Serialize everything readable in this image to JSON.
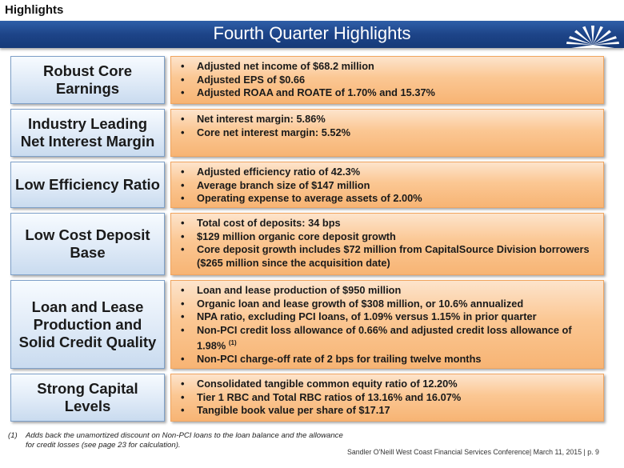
{
  "page": {
    "section_label": "Highlights",
    "banner_title": "Fourth Quarter Highlights"
  },
  "rows": [
    {
      "label": "Robust Core Earnings",
      "bullets": [
        "Adjusted net income of $68.2 million",
        "Adjusted EPS of $0.66",
        "Adjusted ROAA and ROATE of 1.70% and 15.37%"
      ]
    },
    {
      "label": "Industry Leading Net Interest Margin",
      "bullets": [
        "Net interest margin: 5.86%",
        "Core net interest margin: 5.52%"
      ]
    },
    {
      "label": "Low Efficiency Ratio",
      "bullets": [
        "Adjusted efficiency ratio of 42.3%",
        "Average branch size of $147 million",
        "Operating expense to average assets of 2.00%"
      ]
    },
    {
      "label": "Low Cost Deposit Base",
      "bullets": [
        "Total cost of deposits: 34 bps",
        "$129 million organic core deposit growth",
        "Core deposit growth includes $72 million from CapitalSource Division borrowers ($265 million since the acquisition date)"
      ]
    },
    {
      "label": "Loan and Lease Production and Solid Credit Quality",
      "bullets": [
        "Loan and lease production of $950 million",
        "Organic loan and lease growth of $308 million, or 10.6% annualized",
        "NPA ratio, excluding PCI loans, of 1.09% versus 1.15% in prior quarter",
        "Non-PCI credit loss allowance of 0.66% and adjusted credit loss allowance of 1.98%",
        "Non-PCI charge-off rate of 2 bps for trailing twelve months"
      ],
      "footnote_marker": "(1)"
    },
    {
      "label": "Strong Capital Levels",
      "bullets": [
        "Consolidated tangible common equity ratio of 12.20%",
        "Tier 1 RBC and Total RBC ratios of 13.16% and 16.07%",
        "Tangible book value per share of $17.17"
      ]
    }
  ],
  "bullet_glyph": "•",
  "footnote": {
    "number": "(1)",
    "text": "Adds back the unamortized discount on Non-PCI loans to the loan balance and the allowance for credit losses (see page 23 for calculation)."
  },
  "footer": {
    "text": "Sandler O'Neill West Coast Financial Services Conference| March 11, 2015 | p. 9"
  },
  "colors": {
    "banner": "#1d4488",
    "label_fill": "#dfeaf7",
    "detail_fill": "#fbc793"
  }
}
